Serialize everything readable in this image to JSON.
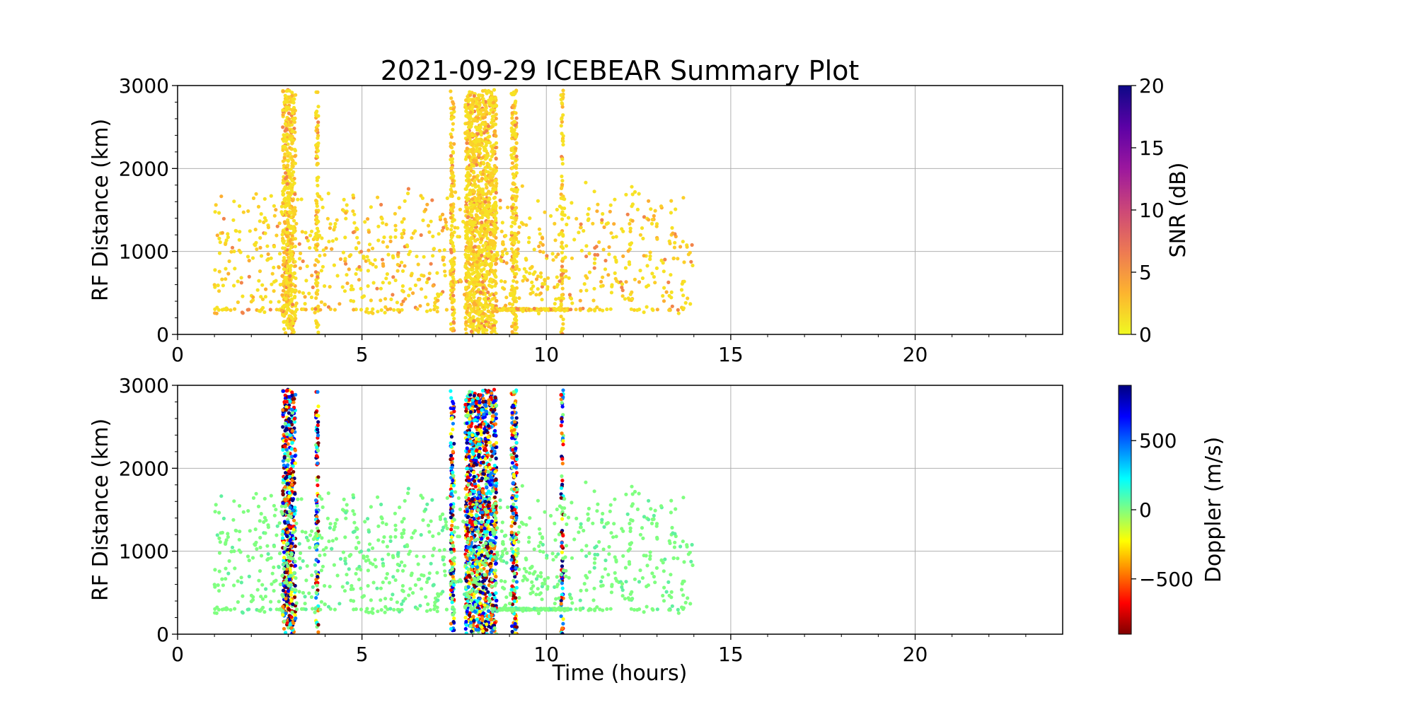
{
  "figure": {
    "title": "2021-09-29 ICEBEAR Summary Plot"
  },
  "chart_data": [
    {
      "type": "scatter",
      "panel": "top",
      "ylabel": "RF Distance (km)",
      "xlabel": "",
      "xlim": [
        0,
        24
      ],
      "ylim": [
        0,
        3000
      ],
      "xticks": [
        "0",
        "5",
        "10",
        "15",
        "20"
      ],
      "yticks": [
        "0",
        "1000",
        "2000",
        "3000"
      ],
      "grid": true,
      "color_variable": "snr",
      "colorbar": {
        "label": "SNR (dB)",
        "range": [
          0,
          20
        ],
        "ticks": [
          "0",
          "5",
          "10",
          "15",
          "20"
        ],
        "colormap": "plasma_r",
        "stops": [
          "#f0f921",
          "#fdb42f",
          "#ed7953",
          "#cc4778",
          "#9c179e",
          "#5c01a6",
          "#0d0887"
        ]
      },
      "dense_bands": [
        {
          "x_start": 2.85,
          "x_end": 3.2,
          "y_max": 2950
        },
        {
          "x_start": 3.75,
          "x_end": 3.82,
          "y_max": 2950
        },
        {
          "x_start": 7.4,
          "x_end": 7.5,
          "y_max": 2950
        },
        {
          "x_start": 7.8,
          "x_end": 8.65,
          "y_max": 2950
        },
        {
          "x_start": 9.05,
          "x_end": 9.2,
          "y_max": 2950
        },
        {
          "x_start": 10.4,
          "x_end": 10.46,
          "y_max": 2950
        }
      ],
      "baseline_segment": {
        "x_start": 8.7,
        "x_end": 10.6,
        "y": 300
      },
      "scatter_region": {
        "x_start": 1.0,
        "x_end": 14.0,
        "y_min": 250,
        "y_max": 1850
      }
    },
    {
      "type": "scatter",
      "panel": "bottom",
      "ylabel": "RF Distance (km)",
      "xlabel": "Time (hours)",
      "xlim": [
        0,
        24
      ],
      "ylim": [
        0,
        3000
      ],
      "xticks": [
        "0",
        "5",
        "10",
        "15",
        "20"
      ],
      "yticks": [
        "0",
        "1000",
        "2000",
        "3000"
      ],
      "grid": true,
      "color_variable": "doppler",
      "colorbar": {
        "label": "Doppler (m/s)",
        "range": [
          -900,
          900
        ],
        "ticks": [
          {
            "value": -500,
            "label": "−500"
          },
          {
            "value": 0,
            "label": "0"
          },
          {
            "value": 500,
            "label": "500"
          }
        ],
        "colormap": "jet_r",
        "stops": [
          "#800000",
          "#ff0000",
          "#ff8000",
          "#ffff00",
          "#80ff80",
          "#00ffff",
          "#0080ff",
          "#0000ff",
          "#000080"
        ]
      },
      "dense_bands": [
        {
          "x_start": 2.85,
          "x_end": 3.2,
          "y_max": 2950
        },
        {
          "x_start": 3.75,
          "x_end": 3.82,
          "y_max": 2950
        },
        {
          "x_start": 7.4,
          "x_end": 7.5,
          "y_max": 2950
        },
        {
          "x_start": 7.8,
          "x_end": 8.65,
          "y_max": 2950
        },
        {
          "x_start": 9.05,
          "x_end": 9.2,
          "y_max": 2950
        },
        {
          "x_start": 10.4,
          "x_end": 10.46,
          "y_max": 2950
        }
      ],
      "baseline_segment": {
        "x_start": 8.7,
        "x_end": 10.6,
        "y": 300
      },
      "scatter_region": {
        "x_start": 1.0,
        "x_end": 14.0,
        "y_min": 250,
        "y_max": 1850
      }
    }
  ]
}
